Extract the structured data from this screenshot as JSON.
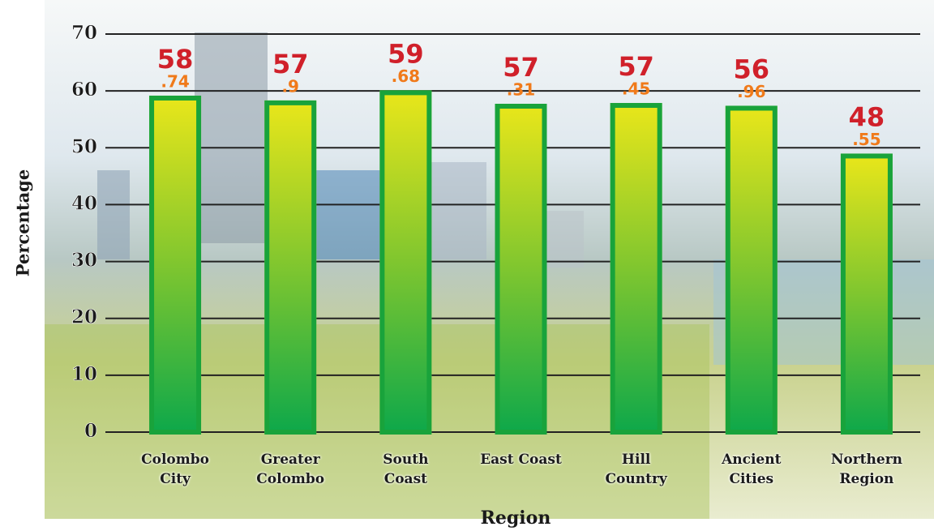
{
  "chart_data": {
    "type": "bar",
    "x_label": "Region",
    "y_label": "Percentage",
    "categories": [
      "Colombo City",
      "Greater Colombo",
      "South Coast",
      "East Coast",
      "Hill Country",
      "Ancient Cities",
      "Northern Region"
    ],
    "values": [
      58.74,
      57.9,
      59.68,
      57.31,
      57.45,
      56.96,
      48.55
    ],
    "value_labels": [
      [
        "58",
        ".74"
      ],
      [
        "57",
        ".9"
      ],
      [
        "59",
        ".68"
      ],
      [
        "57",
        ".31"
      ],
      [
        "57",
        ".45"
      ],
      [
        "56",
        ".96"
      ],
      [
        "48",
        ".55"
      ]
    ],
    "color": "#19a33b",
    "ylim": [
      0,
      70
    ],
    "yticks": [
      0,
      10,
      20,
      30,
      40,
      50,
      60,
      70
    ],
    "grid": true
  }
}
